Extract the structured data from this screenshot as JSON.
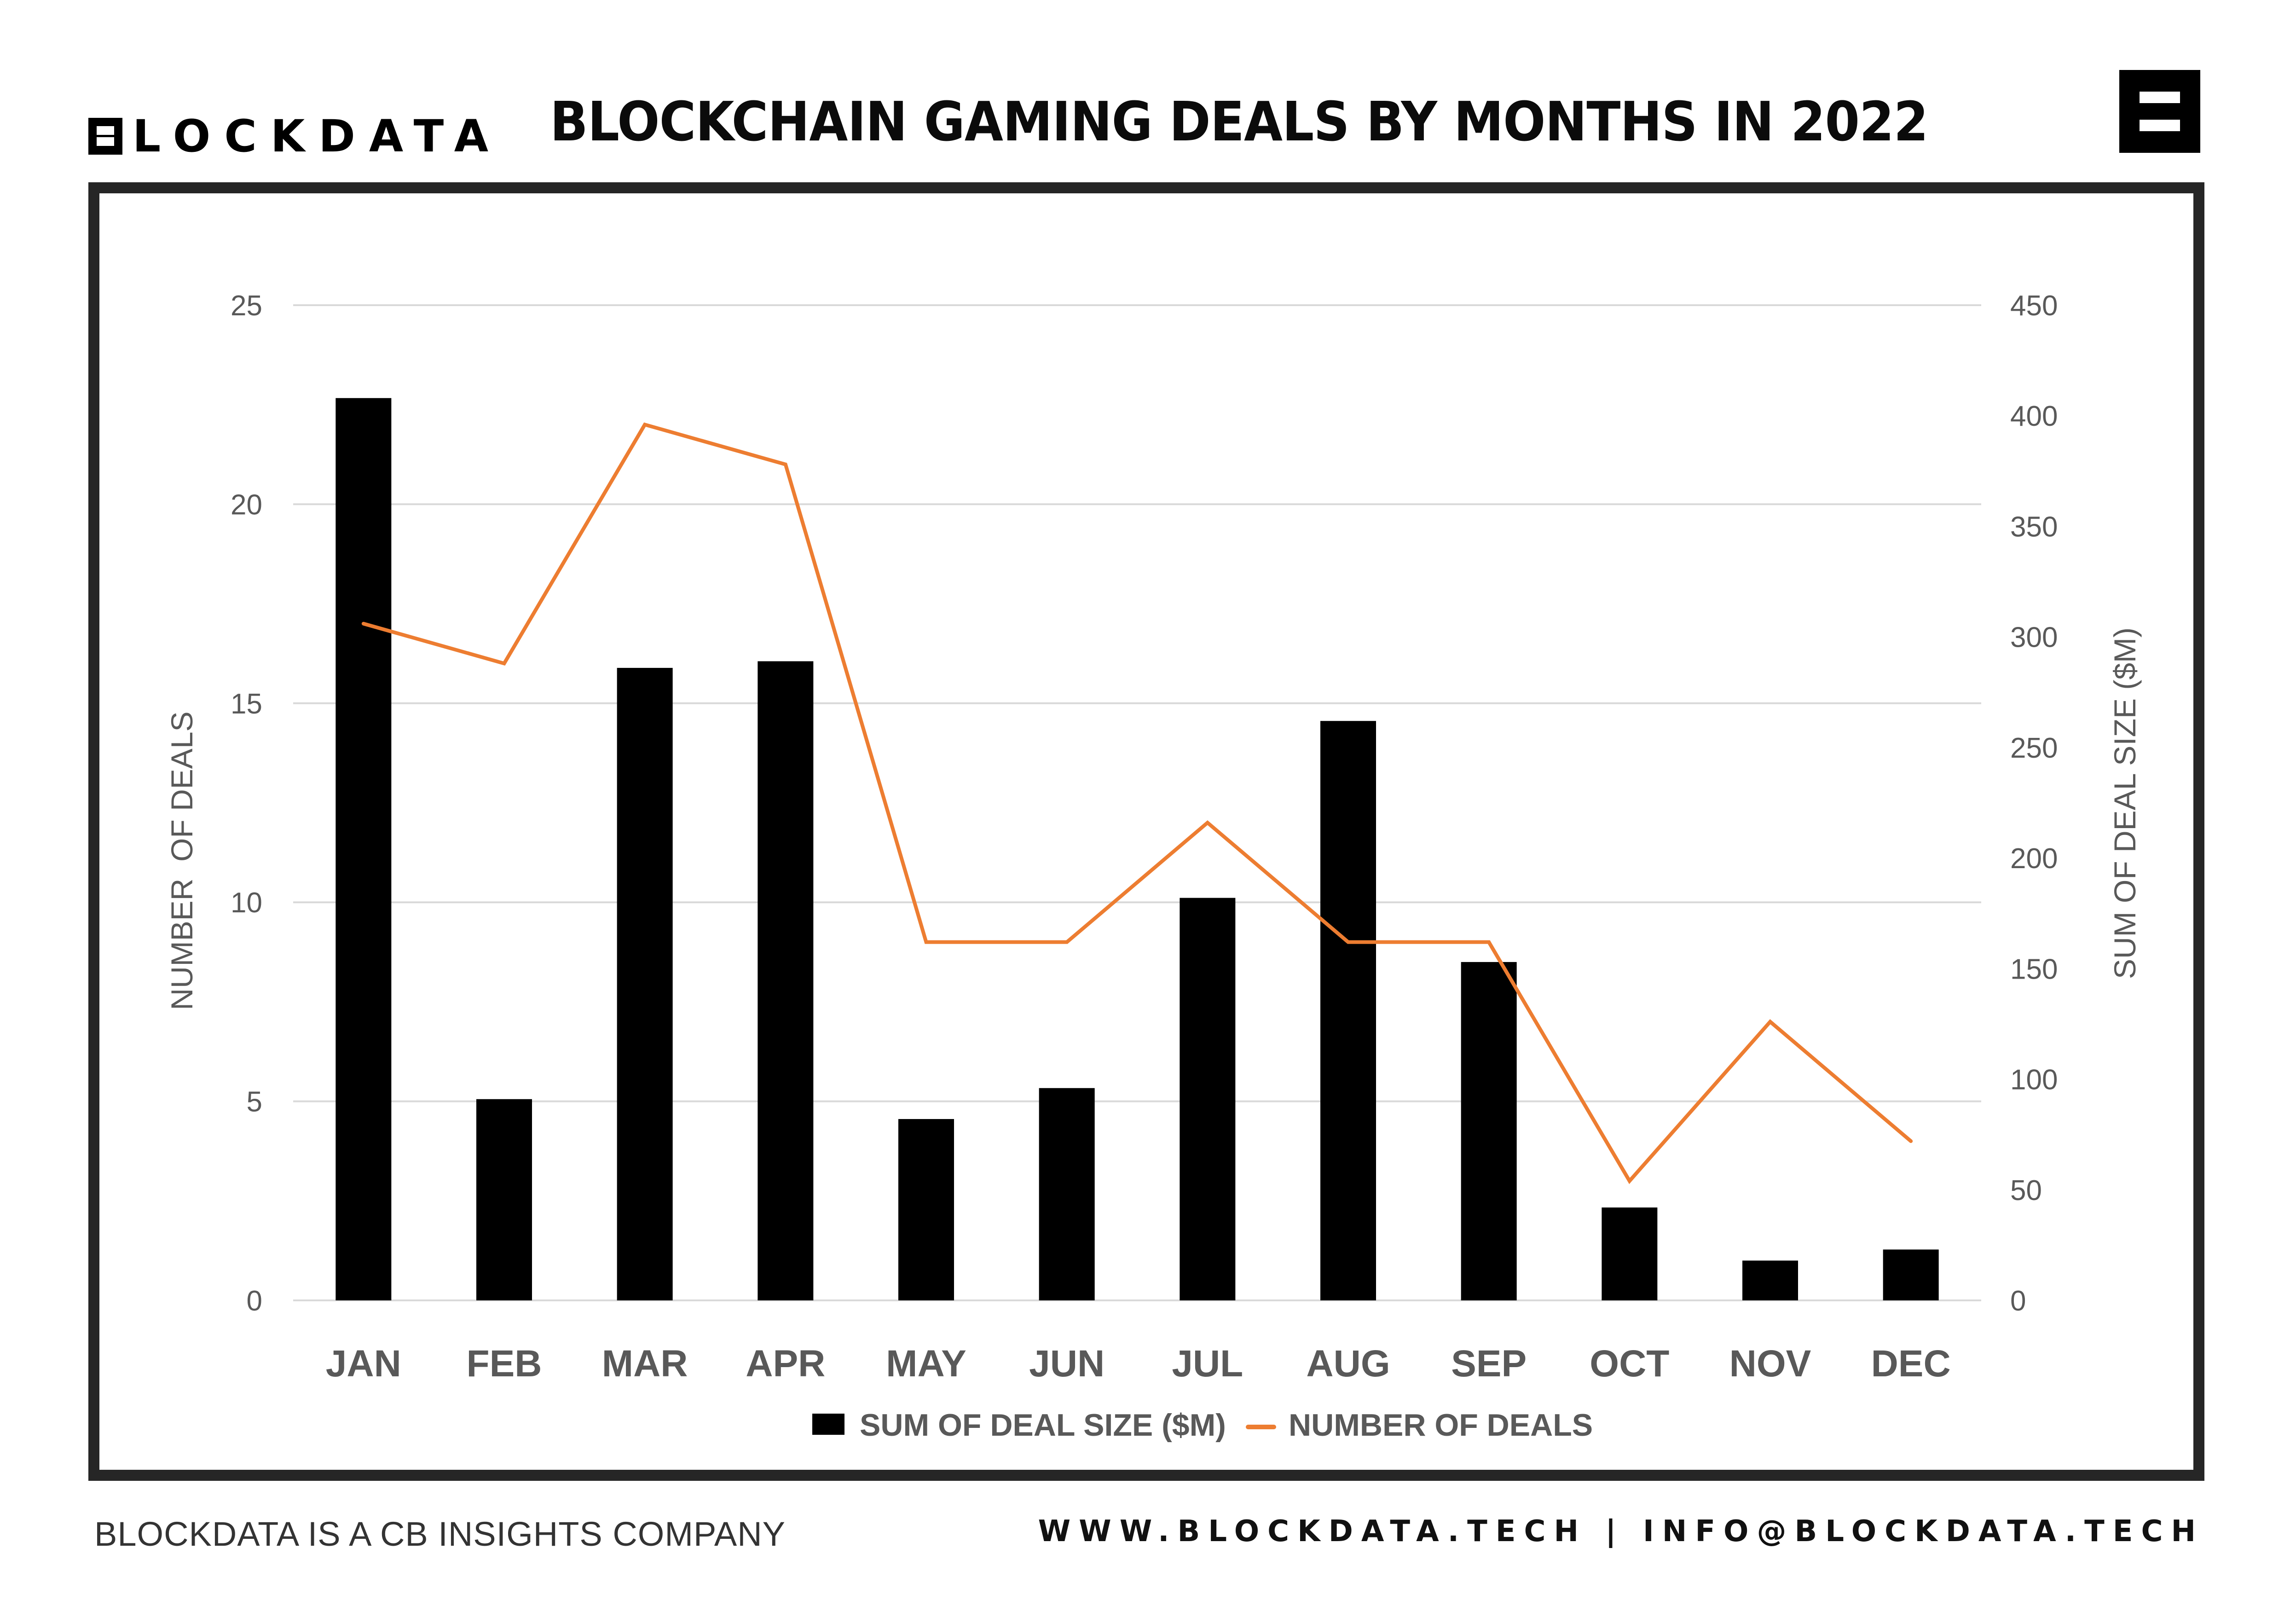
{
  "header": {
    "brand": "LOCKDATA",
    "title": "BLOCKCHAIN GAMING DEALS BY MONTHS IN 2022"
  },
  "footer": {
    "left": "BLOCKDATA IS A CB INSIGHTS COMPANY",
    "right": "WWW.BLOCKDATA.TECH | INFO@BLOCKDATA.TECH"
  },
  "colors": {
    "bar": "#000000",
    "line": "#ED7D31",
    "axis_text": "#595959",
    "gridline": "#D9D9D9",
    "frame": "#262626"
  },
  "chart_data": {
    "type": "bar",
    "title": "BLOCKCHAIN GAMING DEALS BY MONTHS IN 2022",
    "categories": [
      "JAN",
      "FEB",
      "MAR",
      "APR",
      "MAY",
      "JUN",
      "JUL",
      "AUG",
      "SEP",
      "OCT",
      "NOV",
      "DEC"
    ],
    "series": [
      {
        "name": "SUM OF DEAL SIZE ($M)",
        "type": "bar",
        "axis": "right",
        "values": [
          408,
          91,
          286,
          289,
          82,
          96,
          182,
          262,
          153,
          42,
          18,
          23
        ]
      },
      {
        "name": "NUMBER OF DEALS",
        "type": "line",
        "axis": "left",
        "values": [
          17,
          16,
          22,
          21,
          9,
          9,
          12,
          9,
          9,
          3,
          7,
          4
        ]
      }
    ],
    "ylabel_left": "NUMBER  OF DEALS",
    "ylabel_right": "SUM OF DEAL SIZE ($M)",
    "ylim_left": [
      0,
      25
    ],
    "yticks_left": [
      "0",
      "5",
      "10",
      "15",
      "20",
      "25"
    ],
    "ylim_right": [
      0,
      450
    ],
    "yticks_right": [
      "0",
      "50",
      "100",
      "150",
      "200",
      "250",
      "300",
      "350",
      "400",
      "450"
    ],
    "grid": true,
    "legend_position": "bottom",
    "legend": [
      "SUM OF DEAL SIZE ($M)",
      "NUMBER OF DEALS"
    ]
  }
}
